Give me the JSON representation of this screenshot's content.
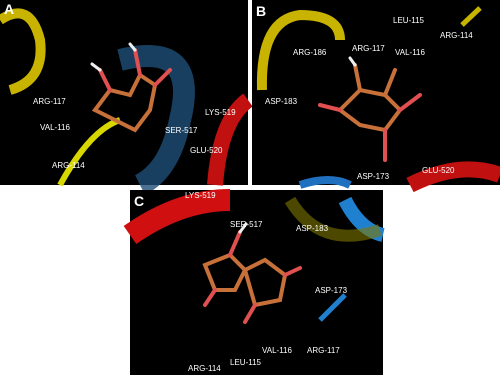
{
  "panels": [
    {
      "label": "A",
      "residues": [
        "ARG-117",
        "VAL-116",
        "ARG-114",
        "SER-517",
        "LYS-519",
        "GLU-520"
      ]
    },
    {
      "label": "B",
      "residues": [
        "LEU-115",
        "ARG-114",
        "ARG-186",
        "ARG-117",
        "VAL-116",
        "ASP-183",
        "ASP-173",
        "GLU-520"
      ]
    },
    {
      "label": "C",
      "residues": [
        "LYS-519",
        "SER-517",
        "ASP-183",
        "ASP-173",
        "VAL-116",
        "ARG-117",
        "ARG-114",
        "LEU-115"
      ]
    }
  ]
}
